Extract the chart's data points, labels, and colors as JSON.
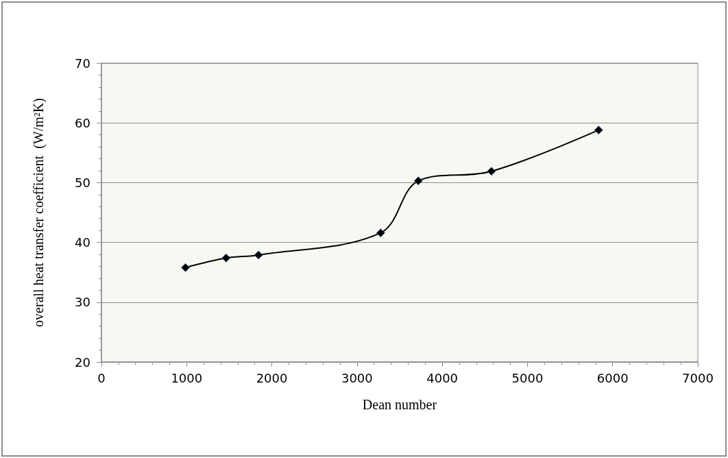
{
  "chart_data": {
    "type": "line",
    "xlabel": "Dean number",
    "ylabel": "overall heat transfer coefficient  (W/m²K)",
    "x": [
      986,
      1463,
      1844,
      3277,
      3719,
      4577,
      5836
    ],
    "series": [
      {
        "color": "#000000",
        "values": [
          35.8,
          37.4,
          37.9,
          41.6,
          50.3,
          51.9,
          58.8
        ]
      }
    ],
    "xlim": [
      0,
      7000
    ],
    "xticks": [
      0,
      1000,
      2000,
      3000,
      4000,
      5000,
      6000,
      7000
    ],
    "ylim": [
      20,
      70
    ],
    "yticks": [
      20,
      30,
      40,
      50,
      60,
      70
    ],
    "grid": "y",
    "marker": "diamond"
  }
}
